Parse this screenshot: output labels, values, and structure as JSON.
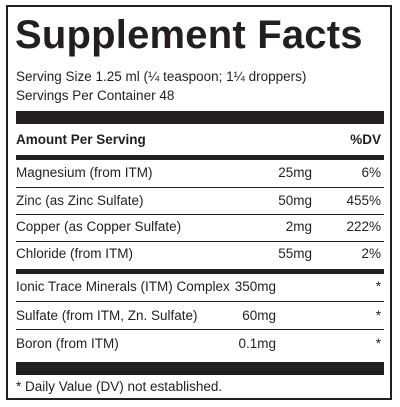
{
  "title": "Supplement Facts",
  "serving_size": "Serving Size 1.25 ml (¼ teaspoon; 1¼ droppers)",
  "servings_per_container": "Servings Per Container 48",
  "header": {
    "amount_label": "Amount Per Serving",
    "dv_label": "%DV"
  },
  "rows": [
    {
      "name": "Magnesium (from ITM)",
      "amount": "25mg",
      "dv": "6%"
    },
    {
      "name": "Zinc (as Zinc Sulfate)",
      "amount": "50mg",
      "dv": "455%"
    },
    {
      "name": "Copper (as Copper Sulfate)",
      "amount": "2mg",
      "dv": "222%"
    },
    {
      "name": "Chloride (from ITM)",
      "amount": "55mg",
      "dv": "2%"
    }
  ],
  "rows2": [
    {
      "name": "Ionic Trace Minerals (ITM) Complex",
      "amount": "350mg",
      "dv": "*"
    },
    {
      "name": "Sulfate (from ITM, Zn. Sulfate)",
      "amount": "60mg",
      "dv": "*"
    },
    {
      "name": "Boron (from ITM)",
      "amount": "0.1mg",
      "dv": "*"
    }
  ],
  "footnote": "* Daily Value (DV) not established."
}
